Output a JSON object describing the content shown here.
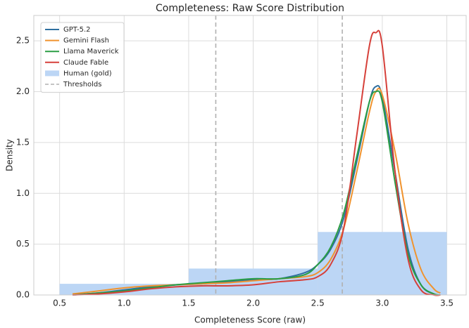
{
  "chart_data": {
    "type": "line",
    "title": "Completeness: Raw Score Distribution",
    "x_label": "Completeness Score (raw)",
    "y_label": "Density",
    "xlim": [
      0.3,
      3.65
    ],
    "ylim": [
      0,
      2.75
    ],
    "xticks": [
      0.5,
      {
        "value": 1,
        "label": "1.0"
      },
      1.5,
      {
        "value": 2,
        "label": "2.0"
      },
      2.5,
      {
        "value": 3,
        "label": "3.0"
      },
      3.5
    ],
    "yticks": [
      {
        "value": 0,
        "label": "0.0"
      },
      0.5,
      {
        "value": 1,
        "label": "1.0"
      },
      1.5,
      {
        "value": 2,
        "label": "2.0"
      },
      2.5
    ],
    "grid": true,
    "legend": "upper left",
    "x": [
      0.6,
      0.8,
      1.0,
      1.2,
      1.4,
      1.6,
      1.8,
      2.0,
      2.2,
      2.4,
      2.5,
      2.6,
      2.7,
      2.8,
      2.9,
      2.95,
      3.0,
      3.1,
      3.2,
      3.3,
      3.4,
      3.45
    ],
    "series": [
      {
        "name": "GPT-5.2",
        "color": "#2f6f9f",
        "values": [
          0,
          0.02,
          0.05,
          0.08,
          0.1,
          0.11,
          0.13,
          0.15,
          0.16,
          0.22,
          0.3,
          0.45,
          0.75,
          1.3,
          1.9,
          2.05,
          1.95,
          1.2,
          0.45,
          0.1,
          0.01,
          0
        ]
      },
      {
        "name": "Gemini Flash",
        "color": "#f0932e",
        "values": [
          0.01,
          0.04,
          0.07,
          0.09,
          0.1,
          0.11,
          0.12,
          0.14,
          0.16,
          0.18,
          0.22,
          0.35,
          0.65,
          1.2,
          1.8,
          2.0,
          1.97,
          1.4,
          0.7,
          0.25,
          0.06,
          0.02
        ]
      },
      {
        "name": "Llama Maverick",
        "color": "#2a9d44",
        "values": [
          0,
          0.02,
          0.04,
          0.07,
          0.1,
          0.12,
          0.14,
          0.16,
          0.16,
          0.2,
          0.3,
          0.47,
          0.8,
          1.35,
          1.9,
          2.0,
          1.9,
          1.1,
          0.4,
          0.1,
          0.01,
          0
        ]
      },
      {
        "name": "Claude Fable",
        "color": "#d6403a",
        "values": [
          0,
          0.01,
          0.03,
          0.06,
          0.08,
          0.09,
          0.09,
          0.1,
          0.13,
          0.15,
          0.18,
          0.3,
          0.65,
          1.55,
          2.45,
          2.58,
          2.45,
          1.2,
          0.35,
          0.05,
          0,
          0
        ]
      }
    ],
    "histogram": {
      "name": "Human (gold)",
      "color": "#bcd6f5",
      "bins": [
        0.5,
        1.5,
        2.5,
        3.5
      ],
      "counts": [
        0.11,
        0.26,
        0.62
      ]
    },
    "thresholds": {
      "name": "Thresholds",
      "color": "#b0b0b0",
      "values": [
        1.71,
        2.69
      ]
    }
  }
}
